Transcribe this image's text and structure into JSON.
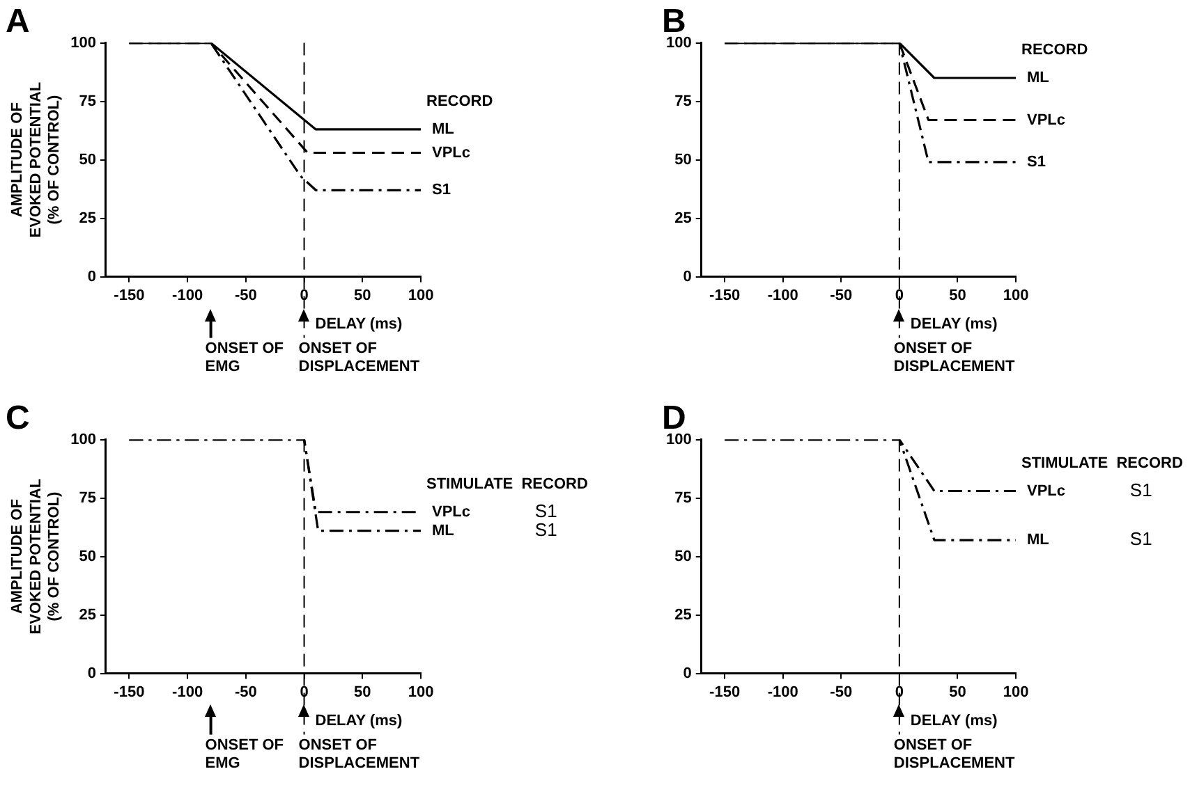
{
  "chart_data": [
    {
      "type": "line",
      "title": "A",
      "xlabel": "DELAY (ms)",
      "ylabel": "AMPLITUDE OF\nEVOKED POTENTIAL\n(% OF CONTROL)",
      "legend_title": "RECORD",
      "xlim": [
        -170,
        100
      ],
      "xticks": [
        -150,
        -100,
        -50,
        0,
        50,
        100
      ],
      "ylim": [
        0,
        100
      ],
      "yticks": [
        0,
        25,
        50,
        75,
        100
      ],
      "grid": false,
      "series": [
        {
          "name": "ML",
          "color": "#000000",
          "line_style": "solid",
          "x": [
            -150,
            -80,
            10,
            100
          ],
          "values": [
            100,
            100,
            63,
            63
          ]
        },
        {
          "name": "VPLc",
          "color": "#000000",
          "line_style": "dashed",
          "x": [
            -150,
            -80,
            3,
            100
          ],
          "values": [
            100,
            100,
            53,
            53
          ]
        },
        {
          "name": "S1",
          "color": "#000000",
          "line_style": "dashdot",
          "x": [
            -150,
            -80,
            -3,
            10,
            100
          ],
          "values": [
            100,
            100,
            43,
            37,
            37
          ]
        }
      ],
      "ref_lines": [
        {
          "axis": "x",
          "value": -80,
          "label": "ONSET OF\nEMG"
        },
        {
          "axis": "x",
          "value": 0,
          "label": "ONSET OF\nDISPLACEMENT",
          "line_style": "dashed",
          "color": "#000000"
        }
      ]
    },
    {
      "type": "line",
      "title": "B",
      "xlabel": "DELAY (ms)",
      "legend_title": "RECORD",
      "xlim": [
        -170,
        100
      ],
      "xticks": [
        -150,
        -100,
        -50,
        0,
        50,
        100
      ],
      "ylim": [
        0,
        100
      ],
      "yticks": [
        0,
        25,
        50,
        75,
        100
      ],
      "grid": false,
      "series": [
        {
          "name": "ML",
          "color": "#000000",
          "line_style": "solid",
          "x": [
            -150,
            0,
            30,
            100
          ],
          "values": [
            100,
            100,
            85,
            85
          ]
        },
        {
          "name": "VPLc",
          "color": "#000000",
          "line_style": "dashed",
          "x": [
            -150,
            0,
            25,
            100
          ],
          "values": [
            100,
            100,
            67,
            67
          ]
        },
        {
          "name": "S1",
          "color": "#000000",
          "line_style": "dashdot",
          "x": [
            -150,
            0,
            25,
            100
          ],
          "values": [
            100,
            100,
            49,
            49
          ]
        }
      ],
      "ref_lines": [
        {
          "axis": "x",
          "value": 0,
          "label": "ONSET OF\nDISPLACEMENT",
          "line_style": "dashed",
          "color": "#000000"
        }
      ]
    },
    {
      "type": "line",
      "title": "C",
      "xlabel": "DELAY (ms)",
      "ylabel": "AMPLITUDE OF\nEVOKED POTENTIAL\n(% OF CONTROL)",
      "legend_title": "STIMULATE  RECORD",
      "xlim": [
        -170,
        100
      ],
      "xticks": [
        -150,
        -100,
        -50,
        0,
        50,
        100
      ],
      "ylim": [
        0,
        100
      ],
      "yticks": [
        0,
        25,
        50,
        75,
        100
      ],
      "grid": false,
      "series": [
        {
          "name": "VPLc",
          "color": "#000000",
          "line_style": "dashdot",
          "x": [
            -150,
            0,
            10,
            100
          ],
          "values": [
            100,
            100,
            69,
            69
          ]
        },
        {
          "name": "ML",
          "color": "#000000",
          "line_style": "dashdot",
          "x": [
            -150,
            0,
            12,
            100
          ],
          "values": [
            100,
            100,
            61,
            61
          ]
        }
      ],
      "ref_lines": [
        {
          "axis": "x",
          "value": -80,
          "label": "ONSET OF\nEMG"
        },
        {
          "axis": "x",
          "value": 0,
          "label": "ONSET OF\nDISPLACEMENT",
          "line_style": "dashed",
          "color": "#000000"
        }
      ],
      "annotations": [
        "S1",
        "S1"
      ]
    },
    {
      "type": "line",
      "title": "D",
      "xlabel": "DELAY (ms)",
      "legend_title": "STIMULATE  RECORD",
      "xlim": [
        -170,
        100
      ],
      "xticks": [
        -150,
        -100,
        -50,
        0,
        50,
        100
      ],
      "ylim": [
        0,
        100
      ],
      "yticks": [
        0,
        25,
        50,
        75,
        100
      ],
      "grid": false,
      "series": [
        {
          "name": "VPLc",
          "color": "#000000",
          "line_style": "dashdot",
          "x": [
            -150,
            0,
            30,
            100
          ],
          "values": [
            100,
            100,
            78,
            78
          ]
        },
        {
          "name": "ML",
          "color": "#000000",
          "line_style": "dashdot",
          "x": [
            -150,
            0,
            30,
            100
          ],
          "values": [
            100,
            100,
            57,
            57
          ]
        }
      ],
      "ref_lines": [
        {
          "axis": "x",
          "value": 0,
          "label": "ONSET OF\nDISPLACEMENT",
          "line_style": "dashed",
          "color": "#000000"
        }
      ],
      "annotations": [
        "S1",
        "S1"
      ]
    }
  ]
}
